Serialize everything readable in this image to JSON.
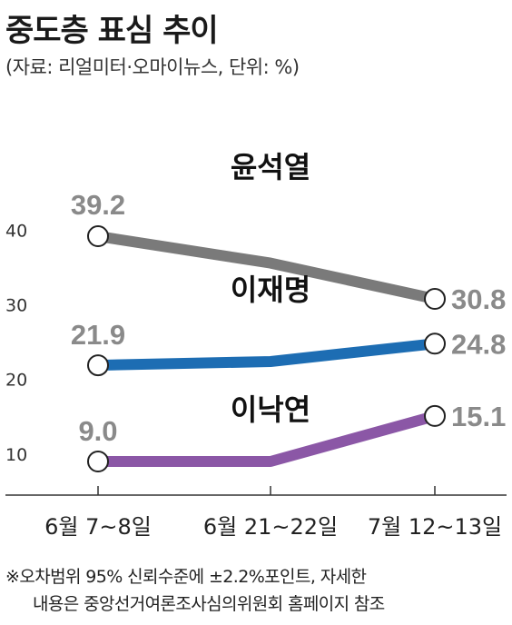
{
  "title": "중도층 표심 추이",
  "subtitle": "(자료: 리얼미터·오마이뉴스, 단위: %)",
  "colors": {
    "윤석열": "#7a7a7a",
    "이재명": "#1d6db3",
    "이낙연": "#8b57a6",
    "value_label": "#8a8a8a",
    "axis": "#333333"
  },
  "chart_data": {
    "type": "line",
    "categories": [
      "6월 7~8일",
      "6월 21~22일",
      "7월 12~13일"
    ],
    "ylim": [
      5,
      45
    ],
    "yticks": [
      10,
      20,
      30,
      40
    ],
    "grid": false,
    "series": [
      {
        "name": "윤석열",
        "values": [
          39.2,
          35.6,
          30.8
        ],
        "labels": [
          "39.2",
          "",
          "30.8"
        ]
      },
      {
        "name": "이재명",
        "values": [
          21.9,
          22.4,
          24.8
        ],
        "labels": [
          "21.9",
          "",
          "24.8"
        ]
      },
      {
        "name": "이낙연",
        "values": [
          9.0,
          9.0,
          15.1
        ],
        "labels": [
          "9.0",
          "",
          "15.1"
        ]
      }
    ]
  },
  "footnote": {
    "line1": "※오차범위 95% 신뢰수준에 ±2.2%포인트, 자세한",
    "line2": "내용은 중앙선거여론조사심의위원회 홈페이지 참조"
  }
}
